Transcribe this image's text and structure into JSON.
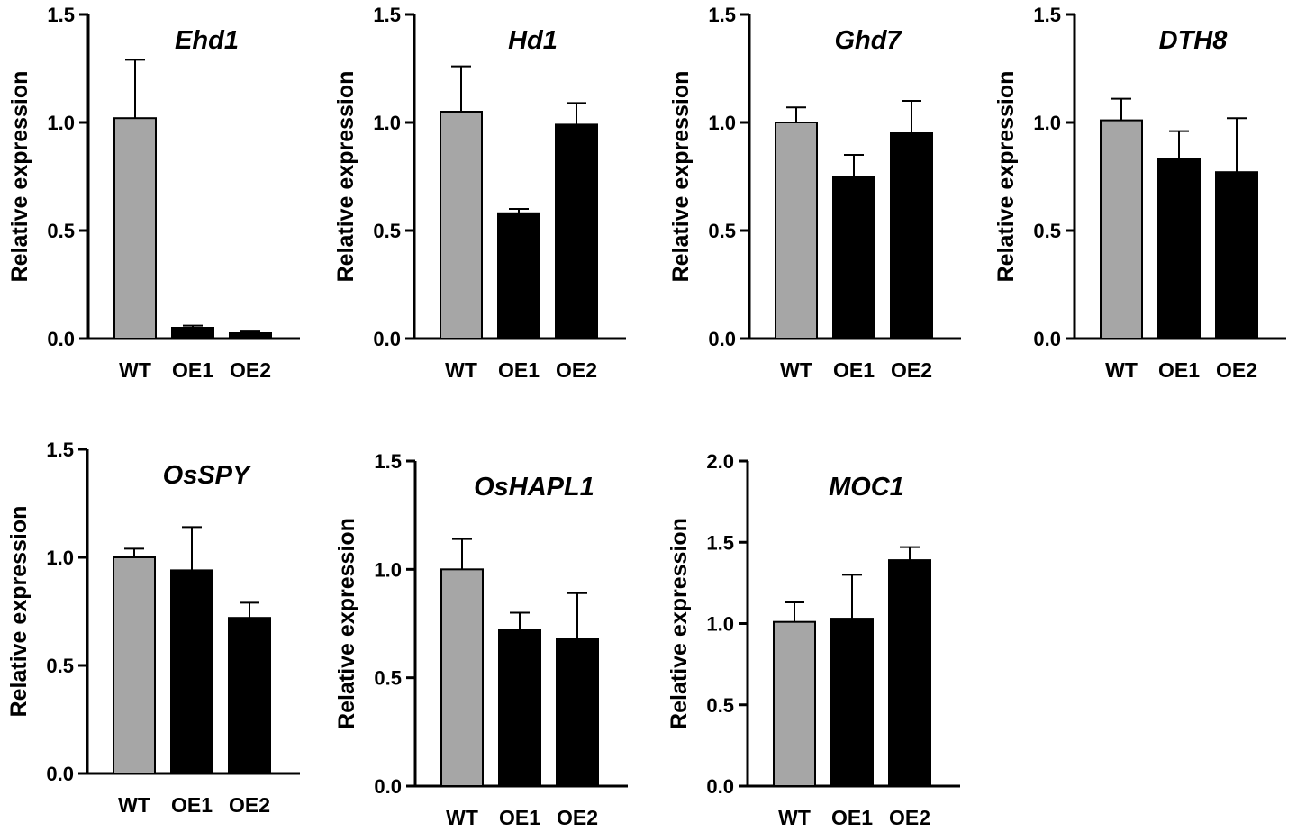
{
  "figure": {
    "description_labels": "Relative expression of flowering genes in WT, OE1 and OE2"
  },
  "colors": {
    "wt": "#a6a6a6",
    "oe": "#000000",
    "axis": "#000000",
    "bar_edge": "#000000"
  },
  "chart_data": [
    {
      "type": "bar",
      "title": "Ehd1",
      "ylabel": "Relative expression",
      "xlabel": "",
      "categories": [
        "WT",
        "OE1",
        "OE2"
      ],
      "values": [
        1.02,
        0.05,
        0.025
      ],
      "errors": [
        0.27,
        0.01,
        0.008
      ],
      "ylim": [
        0,
        1.5
      ],
      "yticks": [
        "0.0",
        "0.5",
        "1.0",
        "1.5"
      ]
    },
    {
      "type": "bar",
      "title": "Hd1",
      "ylabel": "Relative expression",
      "xlabel": "",
      "categories": [
        "WT",
        "OE1",
        "OE2"
      ],
      "values": [
        1.05,
        0.58,
        0.99
      ],
      "errors": [
        0.21,
        0.02,
        0.1
      ],
      "ylim": [
        0,
        1.5
      ],
      "yticks": [
        "0.0",
        "0.5",
        "1.0",
        "1.5"
      ]
    },
    {
      "type": "bar",
      "title": "Ghd7",
      "ylabel": "Relative expression",
      "xlabel": "",
      "categories": [
        "WT",
        "OE1",
        "OE2"
      ],
      "values": [
        1.0,
        0.75,
        0.95
      ],
      "errors": [
        0.07,
        0.1,
        0.15
      ],
      "ylim": [
        0,
        1.5
      ],
      "yticks": [
        "0.0",
        "0.5",
        "1.0",
        "1.5"
      ]
    },
    {
      "type": "bar",
      "title": "DTH8",
      "ylabel": "Relative expression",
      "xlabel": "",
      "categories": [
        "WT",
        "OE1",
        "OE2"
      ],
      "values": [
        1.01,
        0.83,
        0.77
      ],
      "errors": [
        0.1,
        0.13,
        0.25
      ],
      "ylim": [
        0,
        1.5
      ],
      "yticks": [
        "0.0",
        "0.5",
        "1.0",
        "1.5"
      ]
    },
    {
      "type": "bar",
      "title": "OsSPY",
      "ylabel": "Relative expression",
      "xlabel": "",
      "categories": [
        "WT",
        "OE1",
        "OE2"
      ],
      "values": [
        1.0,
        0.94,
        0.72
      ],
      "errors": [
        0.04,
        0.2,
        0.07
      ],
      "ylim": [
        0,
        1.5
      ],
      "yticks": [
        "0.0",
        "0.5",
        "1.0",
        "1.5"
      ]
    },
    {
      "type": "bar",
      "title": "OsHAPL1",
      "ylabel": "Relative expression",
      "xlabel": "",
      "categories": [
        "WT",
        "OE1",
        "OE2"
      ],
      "values": [
        1.0,
        0.72,
        0.68
      ],
      "errors": [
        0.14,
        0.08,
        0.21
      ],
      "ylim": [
        0,
        1.5
      ],
      "yticks": [
        "0.0",
        "0.5",
        "1.0",
        "1.5"
      ]
    },
    {
      "type": "bar",
      "title": "MOC1",
      "ylabel": "Relative expression",
      "xlabel": "",
      "categories": [
        "WT",
        "OE1",
        "OE2"
      ],
      "values": [
        1.01,
        1.03,
        1.39
      ],
      "errors": [
        0.12,
        0.27,
        0.08
      ],
      "ylim": [
        0,
        2.0
      ],
      "yticks": [
        "0.0",
        "0.5",
        "1.0",
        "1.5",
        "2.0"
      ]
    }
  ]
}
